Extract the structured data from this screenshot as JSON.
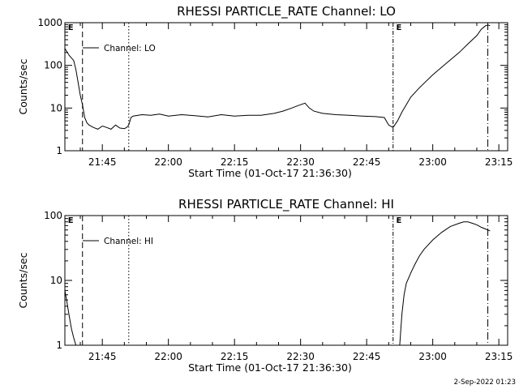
{
  "footer": {
    "date": "2-Sep-2022 01:23"
  },
  "chart_data": [
    {
      "type": "line",
      "title": "RHESSI  PARTICLE_RATE  Channel:  LO",
      "xlabel": "Start Time (01-Oct-17 21:36:30)",
      "ylabel": "Counts/sec",
      "yscale": "log",
      "ylim": [
        1,
        1000
      ],
      "xlim": [
        "21:36:30",
        "23:17:00"
      ],
      "x_tick_labels": [
        "21:45",
        "22:00",
        "22:15",
        "22:30",
        "22:45",
        "23:00",
        "23:15"
      ],
      "y_tick_labels": [
        "1",
        "10",
        "100",
        "1000"
      ],
      "legend": {
        "label": "Channel: LO",
        "placement": "top-left"
      },
      "flags": [
        {
          "label": "E",
          "time": "21:37:00"
        },
        {
          "label": "E",
          "time": "22:51:30"
        }
      ],
      "vertical_markers": [
        {
          "time": "21:40:30",
          "style": "dashed"
        },
        {
          "time": "21:51:00",
          "style": "dotted"
        },
        {
          "time": "22:51:00",
          "style": "dash-dot"
        },
        {
          "time": "23:12:30",
          "style": "long-dash-dot"
        }
      ],
      "series": [
        {
          "x": [
            "21:36:30",
            "21:37:30",
            "21:38:30",
            "21:39:00",
            "21:39:30",
            "21:40:00",
            "21:40:30",
            "21:41:00",
            "21:41:30",
            "21:42:00",
            "21:43:00",
            "21:44:00",
            "21:45:00",
            "21:46:00",
            "21:47:00",
            "21:48:00",
            "21:49:00",
            "21:50:00",
            "21:50:30",
            "21:51:00",
            "21:51:30",
            "21:52:00",
            "21:54:00",
            "21:56:00",
            "21:58:00",
            "22:00:00",
            "22:03:00",
            "22:06:00",
            "22:09:00",
            "22:12:00",
            "22:15:00",
            "22:18:00",
            "22:21:00",
            "22:24:00",
            "22:26:00",
            "22:28:00",
            "22:29:00",
            "22:30:00",
            "22:31:00",
            "22:32:00",
            "22:33:00",
            "22:35:00",
            "22:38:00",
            "22:41:00",
            "22:44:00",
            "22:47:00",
            "22:49:00",
            "22:50:00",
            "22:51:00",
            "22:52:00",
            "22:53:00",
            "22:54:00",
            "22:55:00",
            "22:57:00",
            "23:00:00",
            "23:03:00",
            "23:06:00",
            "23:08:00",
            "23:10:00",
            "23:11:00",
            "23:12:00",
            "23:12:30",
            "23:13:00"
          ],
          "values": [
            250,
            170,
            130,
            80,
            40,
            20,
            12,
            6,
            4.5,
            4,
            3.5,
            3.2,
            3.8,
            3.5,
            3.2,
            4,
            3.4,
            3.3,
            3.5,
            4,
            6,
            6.5,
            7,
            6.8,
            7.2,
            6.5,
            7,
            6.6,
            6.2,
            7,
            6.5,
            6.8,
            6.8,
            7.5,
            8.5,
            10,
            11,
            12,
            13,
            10,
            8.5,
            7.5,
            7,
            6.8,
            6.5,
            6.3,
            6,
            4,
            3.5,
            5,
            8,
            12,
            18,
            30,
            60,
            110,
            200,
            320,
            500,
            700,
            850,
            880,
            850
          ]
        }
      ]
    },
    {
      "type": "line",
      "title": "RHESSI  PARTICLE_RATE  Channel:  HI",
      "xlabel": "Start Time (01-Oct-17 21:36:30)",
      "ylabel": "Counts/sec",
      "yscale": "log",
      "ylim": [
        1,
        100
      ],
      "xlim": [
        "21:36:30",
        "23:17:00"
      ],
      "x_tick_labels": [
        "21:45",
        "22:00",
        "22:15",
        "22:30",
        "22:45",
        "23:00",
        "23:15"
      ],
      "y_tick_labels": [
        "1",
        "10",
        "100"
      ],
      "legend": {
        "label": "Channel: HI",
        "placement": "top-left"
      },
      "flags": [
        {
          "label": "E",
          "time": "21:37:00"
        },
        {
          "label": "E",
          "time": "22:51:30"
        }
      ],
      "vertical_markers": [
        {
          "time": "21:40:30",
          "style": "dashed"
        },
        {
          "time": "21:51:00",
          "style": "dotted"
        },
        {
          "time": "22:51:00",
          "style": "dash-dot"
        },
        {
          "time": "23:12:30",
          "style": "long-dash-dot"
        }
      ],
      "series": [
        {
          "x": [
            "21:36:30",
            "21:37:00",
            "21:37:30",
            "21:38:00",
            "21:38:30",
            "21:39:00"
          ],
          "values": [
            7,
            4.5,
            2.8,
            1.8,
            1.3,
            1
          ]
        },
        {
          "x": [
            "22:52:30",
            "22:53:00",
            "22:53:30",
            "22:54:00",
            "22:55:00",
            "22:56:00",
            "22:57:00",
            "22:58:00",
            "23:00:00",
            "23:02:00",
            "23:04:00",
            "23:06:00",
            "23:07:00",
            "23:08:00",
            "23:09:00",
            "23:10:00",
            "23:11:00",
            "23:12:00",
            "23:13:00"
          ],
          "values": [
            1,
            3,
            6,
            9,
            13,
            18,
            24,
            30,
            42,
            55,
            68,
            76,
            80,
            80,
            76,
            72,
            66,
            62,
            58
          ]
        }
      ]
    }
  ]
}
